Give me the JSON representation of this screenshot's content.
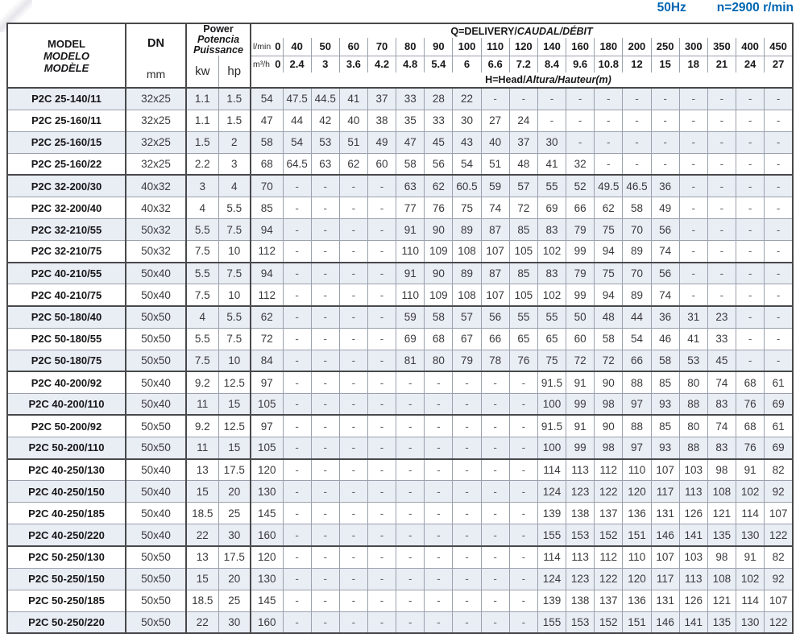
{
  "page_header": {
    "frequency": "50Hz",
    "rotation": "n=2900 r/min"
  },
  "colors": {
    "accent_blue": "#0066b2",
    "row_alt_bg": "#e9edf4",
    "border_dark": "#48494b",
    "border_light": "#9aa1ad"
  },
  "table": {
    "header": {
      "model_lines": [
        "MODEL",
        "MODELO",
        "MODÈLE"
      ],
      "dn_label": "DN",
      "dn_unit": "mm",
      "power_lines": [
        "Power",
        "Potencia",
        "Puissance"
      ],
      "kw_label": "kw",
      "hp_label": "hp",
      "q_title_normal": "Q=DELIVERY/",
      "q_title_italic": "CAUDAL/DÉBIT",
      "flow_lmin_label": "l/min",
      "flow_lmin_zero": "0",
      "flow_m3h_label": "m³/h",
      "flow_m3h_zero": "0",
      "lmin_values": [
        "40",
        "50",
        "60",
        "70",
        "80",
        "90",
        "100",
        "110",
        "120",
        "140",
        "160",
        "180",
        "200",
        "250",
        "300",
        "350",
        "400",
        "450"
      ],
      "m3h_values": [
        "2.4",
        "3",
        "3.6",
        "4.2",
        "4.8",
        "5.4",
        "6",
        "6.6",
        "7.2",
        "8.4",
        "9.6",
        "10.8",
        "12",
        "15",
        "18",
        "21",
        "24",
        "27"
      ],
      "head_title_normal": "H=Head/",
      "head_title_italic": "Altura/Hauteur(m)"
    },
    "rows": [
      {
        "model": "P2C 25-140/11",
        "dn": "32x25",
        "kw": "1.1",
        "hp": "1.5",
        "group": 1,
        "head": [
          "54",
          "47.5",
          "44.5",
          "41",
          "37",
          "33",
          "28",
          "22",
          "-",
          "-",
          "-",
          "-",
          "-",
          "-",
          "-",
          "-",
          "-",
          "-",
          "-"
        ]
      },
      {
        "model": "P2C 25-160/11",
        "dn": "32x25",
        "kw": "1.1",
        "hp": "1.5",
        "group": 1,
        "head": [
          "47",
          "44",
          "42",
          "40",
          "38",
          "35",
          "33",
          "30",
          "27",
          "24",
          "-",
          "-",
          "-",
          "-",
          "-",
          "-",
          "-",
          "-",
          "-"
        ]
      },
      {
        "model": "P2C 25-160/15",
        "dn": "32x25",
        "kw": "1.5",
        "hp": "2",
        "group": 1,
        "head": [
          "58",
          "54",
          "53",
          "51",
          "49",
          "47",
          "45",
          "43",
          "40",
          "37",
          "30",
          "-",
          "-",
          "-",
          "-",
          "-",
          "-",
          "-",
          "-"
        ]
      },
      {
        "model": "P2C 25-160/22",
        "dn": "32x25",
        "kw": "2.2",
        "hp": "3",
        "group": 1,
        "head": [
          "68",
          "64.5",
          "63",
          "62",
          "60",
          "58",
          "56",
          "54",
          "51",
          "48",
          "41",
          "32",
          "-",
          "-",
          "-",
          "-",
          "-",
          "-",
          "-"
        ]
      },
      {
        "model": "P2C 32-200/30",
        "dn": "40x32",
        "kw": "3",
        "hp": "4",
        "group": 2,
        "head": [
          "70",
          "-",
          "-",
          "-",
          "-",
          "63",
          "62",
          "60.5",
          "59",
          "57",
          "55",
          "52",
          "49.5",
          "46.5",
          "36",
          "-",
          "-",
          "-",
          "-"
        ]
      },
      {
        "model": "P2C 32-200/40",
        "dn": "40x32",
        "kw": "4",
        "hp": "5.5",
        "group": 2,
        "head": [
          "85",
          "-",
          "-",
          "-",
          "-",
          "77",
          "76",
          "75",
          "74",
          "72",
          "69",
          "66",
          "62",
          "58",
          "49",
          "-",
          "-",
          "-",
          "-"
        ]
      },
      {
        "model": "P2C 32-210/55",
        "dn": "50x32",
        "kw": "5.5",
        "hp": "7.5",
        "group": 2,
        "head": [
          "94",
          "-",
          "-",
          "-",
          "-",
          "91",
          "90",
          "89",
          "87",
          "85",
          "83",
          "79",
          "75",
          "70",
          "56",
          "-",
          "-",
          "-",
          "-"
        ]
      },
      {
        "model": "P2C 32-210/75",
        "dn": "50x32",
        "kw": "7.5",
        "hp": "10",
        "group": 2,
        "head": [
          "112",
          "-",
          "-",
          "-",
          "-",
          "110",
          "109",
          "108",
          "107",
          "105",
          "102",
          "99",
          "94",
          "89",
          "74",
          "-",
          "-",
          "-",
          "-"
        ]
      },
      {
        "model": "P2C 40-210/55",
        "dn": "50x40",
        "kw": "5.5",
        "hp": "7.5",
        "group": 3,
        "head": [
          "94",
          "-",
          "-",
          "-",
          "-",
          "91",
          "90",
          "89",
          "87",
          "85",
          "83",
          "79",
          "75",
          "70",
          "56",
          "-",
          "-",
          "-",
          "-"
        ]
      },
      {
        "model": "P2C 40-210/75",
        "dn": "50x40",
        "kw": "7.5",
        "hp": "10",
        "group": 3,
        "head": [
          "112",
          "-",
          "-",
          "-",
          "-",
          "110",
          "109",
          "108",
          "107",
          "105",
          "102",
          "99",
          "94",
          "89",
          "74",
          "-",
          "-",
          "-",
          "-"
        ]
      },
      {
        "model": "P2C 50-180/40",
        "dn": "50x50",
        "kw": "4",
        "hp": "5.5",
        "group": 4,
        "head": [
          "62",
          "-",
          "-",
          "-",
          "-",
          "59",
          "58",
          "57",
          "56",
          "55",
          "55",
          "50",
          "48",
          "44",
          "36",
          "31",
          "23",
          "-",
          "-"
        ]
      },
      {
        "model": "P2C 50-180/55",
        "dn": "50x50",
        "kw": "5.5",
        "hp": "7.5",
        "group": 4,
        "head": [
          "72",
          "-",
          "-",
          "-",
          "-",
          "69",
          "68",
          "67",
          "66",
          "65",
          "65",
          "60",
          "58",
          "54",
          "46",
          "41",
          "33",
          "-",
          "-"
        ]
      },
      {
        "model": "P2C 50-180/75",
        "dn": "50x50",
        "kw": "7.5",
        "hp": "10",
        "group": 4,
        "head": [
          "84",
          "-",
          "-",
          "-",
          "-",
          "81",
          "80",
          "79",
          "78",
          "76",
          "75",
          "72",
          "72",
          "66",
          "58",
          "53",
          "45",
          "-",
          "-"
        ]
      },
      {
        "model": "P2C 40-200/92",
        "dn": "50x40",
        "kw": "9.2",
        "hp": "12.5",
        "group": 5,
        "head": [
          "97",
          "-",
          "-",
          "-",
          "-",
          "-",
          "-",
          "-",
          "-",
          "-",
          "91.5",
          "91",
          "90",
          "88",
          "85",
          "80",
          "74",
          "68",
          "61"
        ]
      },
      {
        "model": "P2C 40-200/110",
        "dn": "50x40",
        "kw": "11",
        "hp": "15",
        "group": 5,
        "head": [
          "105",
          "-",
          "-",
          "-",
          "-",
          "-",
          "-",
          "-",
          "-",
          "-",
          "100",
          "99",
          "98",
          "97",
          "93",
          "88",
          "83",
          "76",
          "69"
        ]
      },
      {
        "model": "P2C 50-200/92",
        "dn": "50x50",
        "kw": "9.2",
        "hp": "12.5",
        "group": 6,
        "head": [
          "97",
          "-",
          "-",
          "-",
          "-",
          "-",
          "-",
          "-",
          "-",
          "-",
          "91.5",
          "91",
          "90",
          "88",
          "85",
          "80",
          "74",
          "68",
          "61"
        ]
      },
      {
        "model": "P2C 50-200/110",
        "dn": "50x50",
        "kw": "11",
        "hp": "15",
        "group": 6,
        "head": [
          "105",
          "-",
          "-",
          "-",
          "-",
          "-",
          "-",
          "-",
          "-",
          "-",
          "100",
          "99",
          "98",
          "97",
          "93",
          "88",
          "83",
          "76",
          "69"
        ]
      },
      {
        "model": "P2C 40-250/130",
        "dn": "50x40",
        "kw": "13",
        "hp": "17.5",
        "group": 7,
        "head": [
          "120",
          "-",
          "-",
          "-",
          "-",
          "-",
          "-",
          "-",
          "-",
          "-",
          "114",
          "113",
          "112",
          "110",
          "107",
          "103",
          "98",
          "91",
          "82"
        ]
      },
      {
        "model": "P2C 40-250/150",
        "dn": "50x40",
        "kw": "15",
        "hp": "20",
        "group": 7,
        "head": [
          "130",
          "-",
          "-",
          "-",
          "-",
          "-",
          "-",
          "-",
          "-",
          "-",
          "124",
          "123",
          "122",
          "120",
          "117",
          "113",
          "108",
          "102",
          "92"
        ]
      },
      {
        "model": "P2C 40-250/185",
        "dn": "50x40",
        "kw": "18.5",
        "hp": "25",
        "group": 7,
        "head": [
          "145",
          "-",
          "-",
          "-",
          "-",
          "-",
          "-",
          "-",
          "-",
          "-",
          "139",
          "138",
          "137",
          "136",
          "131",
          "126",
          "121",
          "114",
          "107"
        ]
      },
      {
        "model": "P2C 40-250/220",
        "dn": "50x40",
        "kw": "22",
        "hp": "30",
        "group": 7,
        "head": [
          "160",
          "-",
          "-",
          "-",
          "-",
          "-",
          "-",
          "-",
          "-",
          "-",
          "155",
          "153",
          "152",
          "151",
          "146",
          "141",
          "135",
          "130",
          "122"
        ]
      },
      {
        "model": "P2C 50-250/130",
        "dn": "50x50",
        "kw": "13",
        "hp": "17.5",
        "group": 8,
        "head": [
          "120",
          "-",
          "-",
          "-",
          "-",
          "-",
          "-",
          "-",
          "-",
          "-",
          "114",
          "113",
          "112",
          "110",
          "107",
          "103",
          "98",
          "91",
          "82"
        ]
      },
      {
        "model": "P2C 50-250/150",
        "dn": "50x50",
        "kw": "15",
        "hp": "20",
        "group": 8,
        "head": [
          "130",
          "-",
          "-",
          "-",
          "-",
          "-",
          "-",
          "-",
          "-",
          "-",
          "124",
          "123",
          "122",
          "120",
          "117",
          "113",
          "108",
          "102",
          "92"
        ]
      },
      {
        "model": "P2C 50-250/185",
        "dn": "50x50",
        "kw": "18.5",
        "hp": "25",
        "group": 8,
        "head": [
          "145",
          "-",
          "-",
          "-",
          "-",
          "-",
          "-",
          "-",
          "-",
          "-",
          "139",
          "138",
          "137",
          "136",
          "131",
          "126",
          "121",
          "114",
          "107"
        ]
      },
      {
        "model": "P2C 50-250/220",
        "dn": "50x50",
        "kw": "22",
        "hp": "30",
        "group": 8,
        "head": [
          "160",
          "-",
          "-",
          "-",
          "-",
          "-",
          "-",
          "-",
          "-",
          "-",
          "155",
          "153",
          "152",
          "151",
          "146",
          "141",
          "135",
          "130",
          "122"
        ]
      }
    ]
  }
}
